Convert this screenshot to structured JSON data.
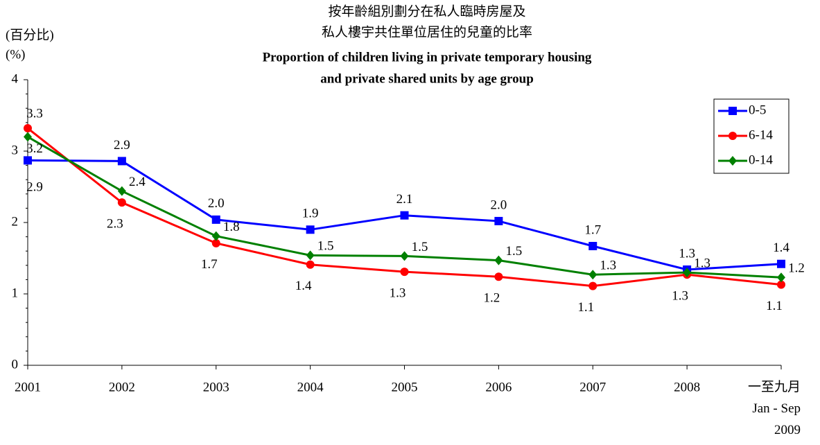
{
  "chart_data": {
    "type": "line",
    "title": [
      "按年齡組別劃分在私人臨時房屋及",
      "私人樓宇共住單位居住的兒童的比率"
    ],
    "subtitle": [
      "Proportion of children living in private temporary housing",
      "and private shared units by age group"
    ],
    "y_label": [
      "(百分比)",
      "(%)"
    ],
    "categories": [
      "2001",
      "2002",
      "2003",
      "2004",
      "2005",
      "2006",
      "2007",
      "2008",
      "一至九月\nJan - Sep\n2009"
    ],
    "series": [
      {
        "name": "0-5",
        "color": "#0000ff",
        "marker": "square",
        "values": [
          2.87,
          2.86,
          2.04,
          1.9,
          2.1,
          2.02,
          1.67,
          1.34,
          1.42
        ],
        "value_labels": [
          "2.9",
          "2.9",
          "2.0",
          "1.9",
          "2.1",
          "2.0",
          "1.7",
          "1.3",
          "1.4"
        ]
      },
      {
        "name": "6-14",
        "color": "#ff0000",
        "marker": "circle",
        "values": [
          3.32,
          2.28,
          1.71,
          1.41,
          1.31,
          1.24,
          1.11,
          1.27,
          1.13
        ],
        "value_labels": [
          "3.3",
          "2.3",
          "1.7",
          "1.4",
          "1.3",
          "1.2",
          "1.1",
          "1.3",
          "1.1"
        ]
      },
      {
        "name": "0-14",
        "color": "#008000",
        "marker": "diamond",
        "values": [
          3.2,
          2.44,
          1.81,
          1.54,
          1.53,
          1.47,
          1.27,
          1.3,
          1.23
        ],
        "value_labels": [
          "3.2",
          "2.4",
          "1.8",
          "1.5",
          "1.5",
          "1.5",
          "1.3",
          "1.3",
          "1.2"
        ]
      }
    ],
    "ylim": [
      0,
      4
    ],
    "yticks": [
      0,
      1,
      2,
      3,
      4
    ],
    "legend": "upper right",
    "grid": false
  }
}
